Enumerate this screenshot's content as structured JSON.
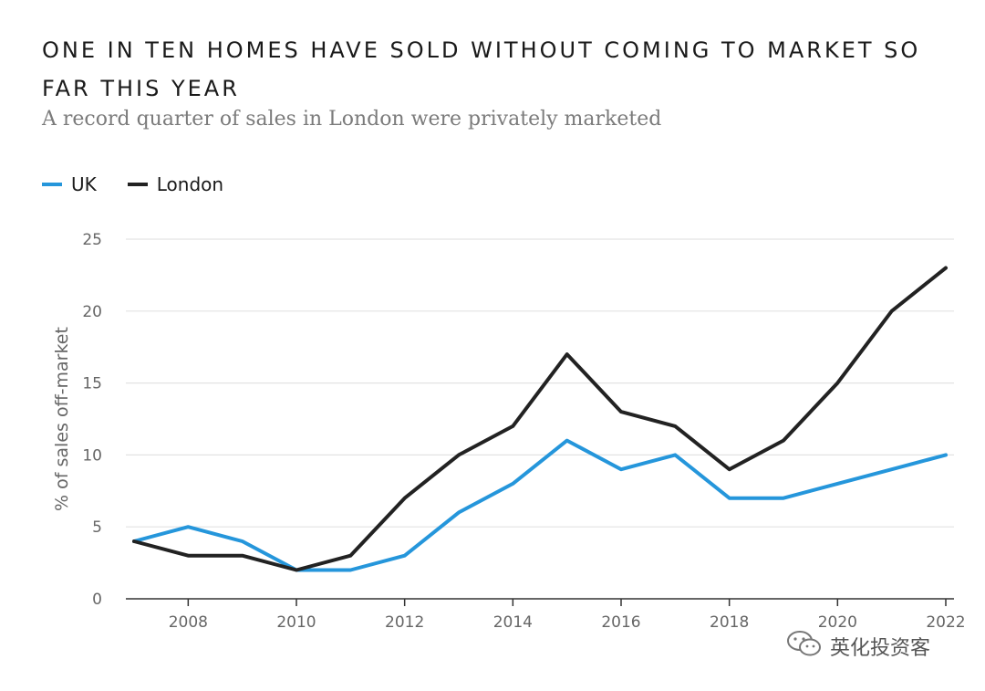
{
  "title": "ONE IN TEN HOMES HAVE SOLD WITHOUT COMING TO MARKET SO FAR THIS YEAR",
  "subtitle": "A record quarter of sales in London were privately marketed",
  "watermark": "英化投资客",
  "colors": {
    "uk": "#2596db",
    "london": "#222222",
    "grid": "#e3e3e3",
    "axis": "#333333",
    "tick_text": "#666666"
  },
  "chart_data": {
    "type": "line",
    "title": "ONE IN TEN HOMES HAVE SOLD WITHOUT COMING TO MARKET SO FAR THIS YEAR",
    "subtitle": "A record quarter of sales in London were privately marketed",
    "ylabel": "% of sales off-market",
    "xlabel": "",
    "ylim": [
      0,
      25
    ],
    "xlim": [
      2007,
      2022
    ],
    "yticks": [
      0,
      5,
      10,
      15,
      20,
      25
    ],
    "xticks": [
      2008,
      2010,
      2012,
      2014,
      2016,
      2018,
      2020,
      2022
    ],
    "grid": "horizontal",
    "legend_position": "top-left",
    "x": [
      2007,
      2008,
      2009,
      2010,
      2011,
      2012,
      2013,
      2014,
      2015,
      2016,
      2017,
      2018,
      2019,
      2020,
      2021,
      2022
    ],
    "series": [
      {
        "name": "UK",
        "color": "#2596db",
        "values": [
          4,
          5,
          4,
          2,
          2,
          3,
          6,
          8,
          11,
          9,
          10,
          7,
          7,
          8,
          9,
          10
        ]
      },
      {
        "name": "London",
        "color": "#222222",
        "values": [
          4,
          3,
          3,
          2,
          3,
          7,
          10,
          12,
          17,
          13,
          12,
          9,
          11,
          15,
          20,
          23
        ]
      }
    ]
  }
}
